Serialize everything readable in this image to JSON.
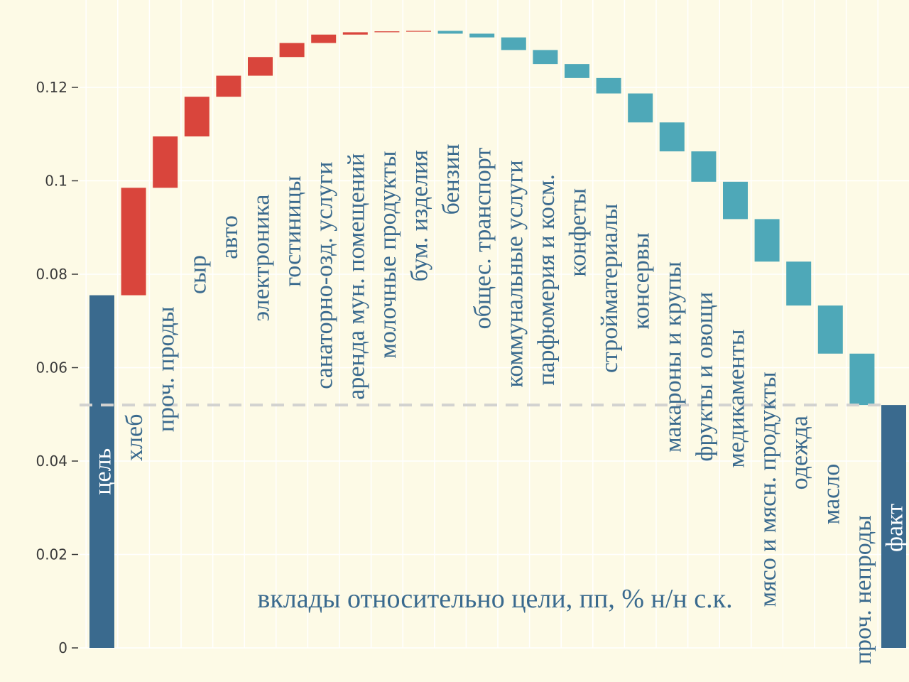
{
  "chart_data": {
    "type": "bar",
    "subtype": "waterfall",
    "title": "вклады относительно цели, пп, % н/н с.к.",
    "xlabel": "",
    "ylabel": "",
    "ylim": [
      0,
      0.135
    ],
    "y_ticks": [
      0,
      0.02,
      0.04,
      0.06,
      0.08,
      0.1,
      0.12
    ],
    "y_tick_labels": [
      "0",
      "0.02",
      "0.04",
      "0.06",
      "0.08",
      "0.1",
      "0.12"
    ],
    "grid": true,
    "reference_line": 0.052,
    "bars": [
      {
        "label": "цель",
        "kind": "total",
        "start": 0,
        "end": 0.0755
      },
      {
        "label": "хлеб",
        "kind": "increase",
        "start": 0.0755,
        "end": 0.0985
      },
      {
        "label": "проч. проды",
        "kind": "increase",
        "start": 0.0985,
        "end": 0.1095
      },
      {
        "label": "сыр",
        "kind": "increase",
        "start": 0.1095,
        "end": 0.118
      },
      {
        "label": "авто",
        "kind": "increase",
        "start": 0.118,
        "end": 0.1225
      },
      {
        "label": "электроника",
        "kind": "increase",
        "start": 0.1225,
        "end": 0.1265
      },
      {
        "label": "гостиницы",
        "kind": "increase",
        "start": 0.1265,
        "end": 0.1295
      },
      {
        "label": "санаторно-озд. услуги",
        "kind": "increase",
        "start": 0.1295,
        "end": 0.1313
      },
      {
        "label": "аренда мун. помещений",
        "kind": "increase",
        "start": 0.1313,
        "end": 0.1318
      },
      {
        "label": "молочные продукты",
        "kind": "increase",
        "start": 0.1318,
        "end": 0.132
      },
      {
        "label": "бум. изделия",
        "kind": "increase",
        "start": 0.132,
        "end": 0.1321
      },
      {
        "label": "бензин",
        "kind": "decrease",
        "start": 0.1321,
        "end": 0.1315
      },
      {
        "label": "общес. транспорт",
        "kind": "decrease",
        "start": 0.1315,
        "end": 0.1307
      },
      {
        "label": "коммунальные услуги",
        "kind": "decrease",
        "start": 0.1307,
        "end": 0.128
      },
      {
        "label": "парфюмерия и косм.",
        "kind": "decrease",
        "start": 0.128,
        "end": 0.125
      },
      {
        "label": "конфеты",
        "kind": "decrease",
        "start": 0.125,
        "end": 0.122
      },
      {
        "label": "стройматериалы",
        "kind": "decrease",
        "start": 0.122,
        "end": 0.1187
      },
      {
        "label": "консервы",
        "kind": "decrease",
        "start": 0.1187,
        "end": 0.1125
      },
      {
        "label": "макароны и крупы",
        "kind": "decrease",
        "start": 0.1125,
        "end": 0.1063
      },
      {
        "label": "фрукты и овощи",
        "kind": "decrease",
        "start": 0.1063,
        "end": 0.0998
      },
      {
        "label": "медикаменты",
        "kind": "decrease",
        "start": 0.0998,
        "end": 0.0918
      },
      {
        "label": "мясо и мясн. продукты",
        "kind": "decrease",
        "start": 0.0918,
        "end": 0.0827
      },
      {
        "label": "одежда",
        "kind": "decrease",
        "start": 0.0827,
        "end": 0.0733
      },
      {
        "label": "масло",
        "kind": "decrease",
        "start": 0.0733,
        "end": 0.063
      },
      {
        "label": "проч. непроды",
        "kind": "decrease",
        "start": 0.063,
        "end": 0.052
      },
      {
        "label": "факт",
        "kind": "total",
        "start": 0,
        "end": 0.052
      }
    ]
  },
  "colors": {
    "background": "#fdfae6",
    "grid": "#ffffff",
    "increase": "#d9453c",
    "decrease": "#4ea8b8",
    "total": "#3a6a8e",
    "reference_line": "#d2d2d0",
    "label_light": "#ffffff",
    "label_dark": "#3a6a8e"
  }
}
